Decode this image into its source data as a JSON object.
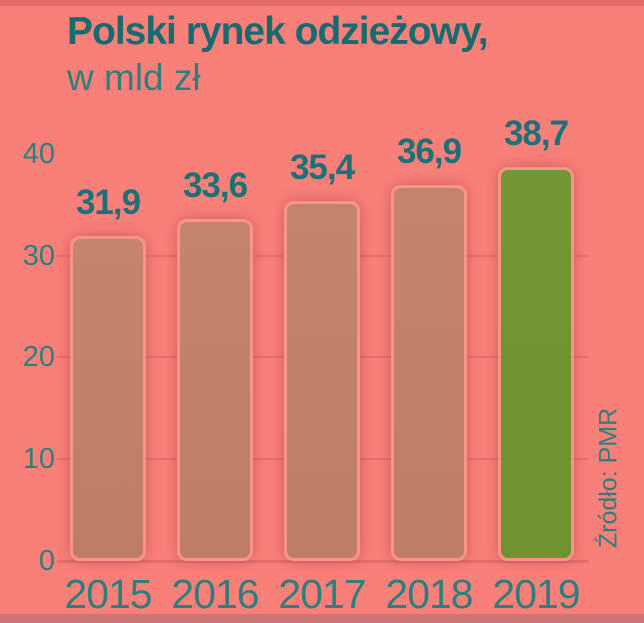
{
  "chart_data": {
    "type": "bar",
    "title": "Polski rynek odzieżowy,",
    "subtitle": "w mld zł",
    "source": "Źródło: PMR",
    "categories": [
      "2015",
      "2016",
      "2017",
      "2018",
      "2019"
    ],
    "values": [
      31.9,
      33.6,
      35.4,
      36.9,
      38.7
    ],
    "value_labels": [
      "31,9",
      "33,6",
      "35,4",
      "36,9",
      "38,7"
    ],
    "ylabel": "",
    "xlabel": "",
    "ylim": [
      0,
      40
    ],
    "y_ticks": [
      0,
      10,
      20,
      30,
      40
    ],
    "gridline_ticks": [
      0,
      10,
      20,
      30
    ],
    "legend": "none",
    "grid": "horizontal",
    "highlight_index": 4,
    "colors": {
      "background": "#f98079",
      "bar_fill": "#c5846e",
      "bar_border": "#fc9486",
      "highlight_fill": "#6f9331",
      "title_text": "#176b6f",
      "value_text": "#1d7077",
      "axis_text": "#2e7e7d",
      "gridline": "#e26f6c"
    }
  }
}
